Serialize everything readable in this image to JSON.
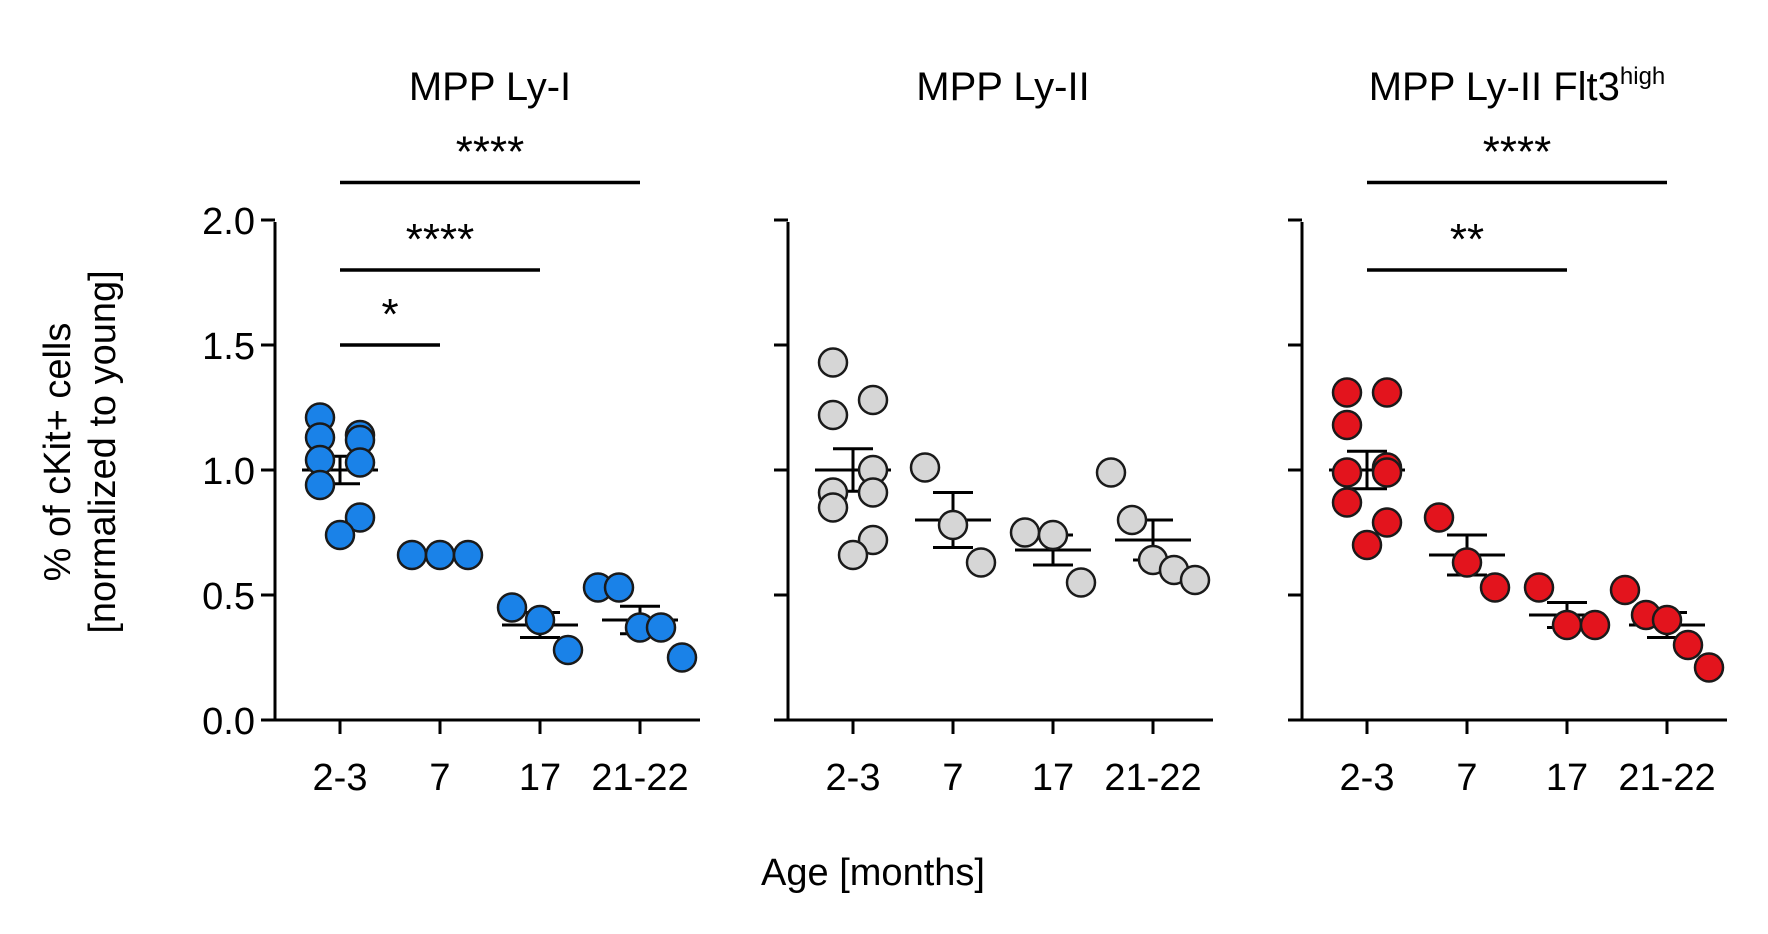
{
  "figure": {
    "ylabel_line1": "% of cKit+ cells",
    "ylabel_line2": "[normalized to young]",
    "xlabel": "Age [months]"
  },
  "chart_data": [
    {
      "type": "scatter",
      "title": "MPP Ly-I",
      "title_sup": "",
      "color": "#1a82e8",
      "categories": [
        "2-3",
        "7",
        "17",
        "21-22"
      ],
      "ylim": [
        0,
        2.0
      ],
      "yticks": [
        "0.0",
        "0.5",
        "1.0",
        "1.5",
        "2.0"
      ],
      "show_ytick_labels": true,
      "groups": [
        {
          "category": "2-3",
          "points": [
            1.21,
            1.14,
            1.13,
            1.12,
            1.04,
            1.03,
            0.94,
            0.81,
            0.74
          ],
          "mean": 1.0,
          "sem": 0.055
        },
        {
          "category": "7",
          "points": [
            0.66,
            0.66,
            0.66
          ],
          "mean": 0.66,
          "sem": 0.003
        },
        {
          "category": "17",
          "points": [
            0.45,
            0.4,
            0.28
          ],
          "mean": 0.38,
          "sem": 0.05
        },
        {
          "category": "21-22",
          "points": [
            0.53,
            0.53,
            0.37,
            0.37,
            0.25
          ],
          "mean": 0.4,
          "sem": 0.055
        }
      ],
      "significance": [
        {
          "from": "2-3",
          "to": "7",
          "y": 1.5,
          "label": "*"
        },
        {
          "from": "2-3",
          "to": "17",
          "y": 1.8,
          "label": "****"
        },
        {
          "from": "2-3",
          "to": "21-22",
          "y": 2.15,
          "label": "****"
        }
      ]
    },
    {
      "type": "scatter",
      "title": "MPP Ly-II",
      "title_sup": "",
      "color": "#d6d6d6",
      "categories": [
        "2-3",
        "7",
        "17",
        "21-22"
      ],
      "ylim": [
        0,
        2.0
      ],
      "yticks": [
        "0.0",
        "0.5",
        "1.0",
        "1.5",
        "2.0"
      ],
      "show_ytick_labels": false,
      "groups": [
        {
          "category": "2-3",
          "points": [
            1.43,
            1.28,
            1.22,
            1.0,
            0.91,
            0.91,
            0.85,
            0.72,
            0.66
          ],
          "mean": 1.0,
          "sem": 0.085
        },
        {
          "category": "7",
          "points": [
            1.01,
            0.78,
            0.63
          ],
          "mean": 0.8,
          "sem": 0.11
        },
        {
          "category": "17",
          "points": [
            0.75,
            0.74,
            0.55
          ],
          "mean": 0.68,
          "sem": 0.06
        },
        {
          "category": "21-22",
          "points": [
            0.99,
            0.8,
            0.64,
            0.6,
            0.56
          ],
          "mean": 0.72,
          "sem": 0.08
        }
      ],
      "significance": []
    },
    {
      "type": "scatter",
      "title": "MPP Ly-II Flt3",
      "title_sup": "high",
      "color": "#e3141d",
      "categories": [
        "2-3",
        "7",
        "17",
        "21-22"
      ],
      "ylim": [
        0,
        2.0
      ],
      "yticks": [
        "0.0",
        "0.5",
        "1.0",
        "1.5",
        "2.0"
      ],
      "show_ytick_labels": false,
      "groups": [
        {
          "category": "2-3",
          "points": [
            1.31,
            1.31,
            1.18,
            1.01,
            0.99,
            0.99,
            0.87,
            0.79,
            0.7
          ],
          "mean": 1.0,
          "sem": 0.075
        },
        {
          "category": "7",
          "points": [
            0.81,
            0.63,
            0.53
          ],
          "mean": 0.66,
          "sem": 0.08
        },
        {
          "category": "17",
          "points": [
            0.53,
            0.38,
            0.38
          ],
          "mean": 0.42,
          "sem": 0.05
        },
        {
          "category": "21-22",
          "points": [
            0.52,
            0.42,
            0.4,
            0.3,
            0.21
          ],
          "mean": 0.38,
          "sem": 0.05
        }
      ],
      "significance": [
        {
          "from": "2-3",
          "to": "17",
          "y": 1.8,
          "label": "**"
        },
        {
          "from": "2-3",
          "to": "21-22",
          "y": 2.15,
          "label": "****"
        }
      ]
    }
  ]
}
